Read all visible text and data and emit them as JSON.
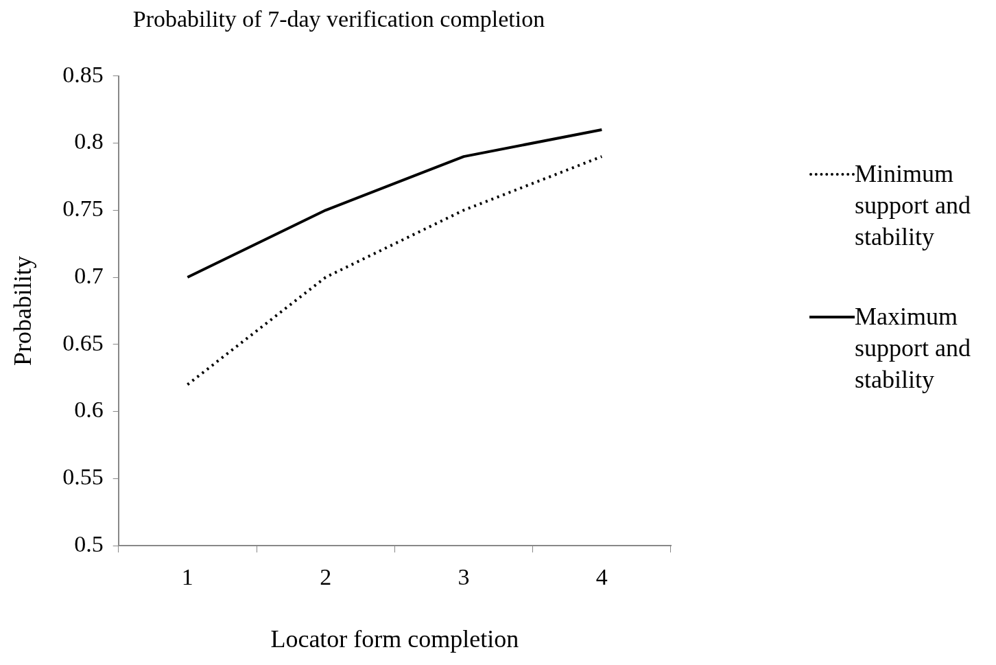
{
  "chart_data": {
    "type": "line",
    "title": "Probability of 7-day verification completion",
    "xlabel": "Locator form completion",
    "ylabel": "Probability",
    "categories": [
      "1",
      "2",
      "3",
      "4"
    ],
    "series": [
      {
        "name": "Minimum support and stability",
        "color": "#000000",
        "line_style": "dotted",
        "values": [
          0.62,
          0.7,
          0.75,
          0.79
        ]
      },
      {
        "name": "Maximum support and stability",
        "color": "#000000",
        "line_style": "solid",
        "values": [
          0.7,
          0.75,
          0.79,
          0.81
        ]
      }
    ],
    "ylim": [
      0.5,
      0.85
    ],
    "yticks": [
      0.5,
      0.55,
      0.6,
      0.65,
      0.7,
      0.75,
      0.8,
      0.85
    ],
    "legend": "right",
    "marker": "none",
    "grid": false
  }
}
